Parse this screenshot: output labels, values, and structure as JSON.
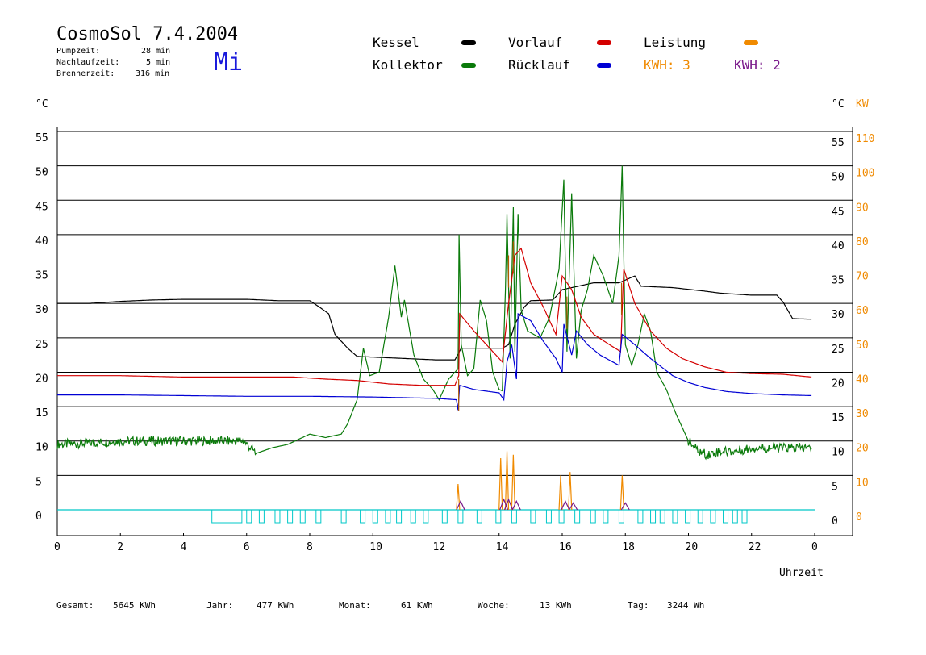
{
  "header": {
    "title": "CosmoSol 7.4.2004",
    "weekday": "Mi",
    "stats": [
      {
        "label": "Pumpzeit:",
        "value": "28 min"
      },
      {
        "label": "Nachlaufzeit:",
        "value": "5 min"
      },
      {
        "label": "Brennerzeit:",
        "value": "316 min"
      }
    ]
  },
  "legend": {
    "kessel": {
      "label": "Kessel",
      "color": "#000000"
    },
    "kollektor": {
      "label": "Kollektor",
      "color": "#0a7a0a"
    },
    "vorlauf": {
      "label": "Vorlauf",
      "color": "#d40000"
    },
    "ruecklauf": {
      "label": "Rücklauf",
      "color": "#0000d4"
    },
    "leistung": {
      "label": "Leistung",
      "color": "#f08a00"
    },
    "kwh1": {
      "label": "KWH: 3",
      "color": "#f08a00"
    },
    "kwh2": {
      "label": "KWH: 2",
      "color": "#7a1a8a"
    }
  },
  "footer": [
    {
      "label": "Gesamt:",
      "value": "5645 KWh"
    },
    {
      "label": "Jahr:",
      "value": "477 KWh"
    },
    {
      "label": "Monat:",
      "value": "61 KWh"
    },
    {
      "label": "Woche:",
      "value": "13 KWh"
    },
    {
      "label": "Tag:",
      "value": "3244 Wh"
    }
  ],
  "chart_data": {
    "type": "line",
    "xlabel": "Uhrzeit",
    "ylabel_left": "°C",
    "ylabel_right": "°C",
    "ylabel_right2": "KW",
    "xlim": [
      0,
      24
    ],
    "ylim": [
      0,
      55
    ],
    "ylim_right2": [
      0,
      110
    ],
    "x_ticks": [
      "0",
      "2",
      "4",
      "6",
      "8",
      "10",
      "12",
      "14",
      "16",
      "18",
      "20",
      "22",
      "0"
    ],
    "y_ticks": [
      0,
      5,
      10,
      15,
      20,
      25,
      30,
      35,
      40,
      45,
      50,
      55
    ],
    "y2_ticks": [
      0,
      10,
      20,
      30,
      40,
      50,
      60,
      70,
      80,
      90,
      100,
      110
    ],
    "grid": true,
    "series": [
      {
        "name": "Kessel",
        "color": "#000000",
        "points": [
          [
            0,
            30
          ],
          [
            1,
            30
          ],
          [
            2,
            30.3
          ],
          [
            3,
            30.5
          ],
          [
            4,
            30.6
          ],
          [
            5,
            30.6
          ],
          [
            6,
            30.6
          ],
          [
            7,
            30.4
          ],
          [
            8,
            30.4
          ],
          [
            8.3,
            29.5
          ],
          [
            8.6,
            28.5
          ],
          [
            8.8,
            25.5
          ],
          [
            9.2,
            23.5
          ],
          [
            9.5,
            22.3
          ],
          [
            11,
            22
          ],
          [
            12,
            21.8
          ],
          [
            12.6,
            21.8
          ],
          [
            12.8,
            23.5
          ],
          [
            14.1,
            23.5
          ],
          [
            14.3,
            24
          ],
          [
            14.5,
            27
          ],
          [
            14.8,
            29.5
          ],
          [
            15,
            30.4
          ],
          [
            15.7,
            30.5
          ],
          [
            16,
            32
          ],
          [
            16.5,
            32.5
          ],
          [
            17,
            33
          ],
          [
            17.8,
            33
          ],
          [
            18.3,
            34
          ],
          [
            18.5,
            32.5
          ],
          [
            19.5,
            32.3
          ],
          [
            20.5,
            31.8
          ],
          [
            21,
            31.5
          ],
          [
            22,
            31.2
          ],
          [
            22.8,
            31.2
          ],
          [
            23,
            30.2
          ],
          [
            23.3,
            27.8
          ],
          [
            23.9,
            27.7
          ]
        ]
      },
      {
        "name": "Kollektor",
        "color": "#0a7a0a",
        "points": [
          [
            0,
            9.5
          ],
          [
            1,
            9.7
          ],
          [
            2,
            10
          ],
          [
            3,
            10
          ],
          [
            4,
            10
          ],
          [
            5,
            10
          ],
          [
            5.9,
            10
          ],
          [
            6.3,
            8.2
          ],
          [
            6.8,
            9
          ],
          [
            7.3,
            9.5
          ],
          [
            8,
            11
          ],
          [
            8.5,
            10.5
          ],
          [
            9,
            11
          ],
          [
            9.2,
            12.5
          ],
          [
            9.5,
            16
          ],
          [
            9.7,
            23.5
          ],
          [
            9.9,
            19.5
          ],
          [
            10.2,
            20
          ],
          [
            10.5,
            28
          ],
          [
            10.7,
            35.5
          ],
          [
            10.9,
            28
          ],
          [
            11,
            30.5
          ],
          [
            11.3,
            22.5
          ],
          [
            11.6,
            19
          ],
          [
            11.9,
            17.5
          ],
          [
            12.1,
            16
          ],
          [
            12.4,
            19
          ],
          [
            12.7,
            20.5
          ],
          [
            12.73,
            40
          ],
          [
            12.8,
            24
          ],
          [
            13,
            19.5
          ],
          [
            13.2,
            20.5
          ],
          [
            13.4,
            30.5
          ],
          [
            13.6,
            27.5
          ],
          [
            13.8,
            20
          ],
          [
            14,
            17.5
          ],
          [
            14.1,
            17.3
          ],
          [
            14.2,
            32
          ],
          [
            14.25,
            43
          ],
          [
            14.35,
            22
          ],
          [
            14.45,
            44
          ],
          [
            14.5,
            23
          ],
          [
            14.6,
            43
          ],
          [
            14.7,
            29
          ],
          [
            14.9,
            26
          ],
          [
            15.3,
            25
          ],
          [
            15.6,
            28
          ],
          [
            15.9,
            35
          ],
          [
            16.05,
            48
          ],
          [
            16.15,
            23
          ],
          [
            16.3,
            46
          ],
          [
            16.45,
            22
          ],
          [
            16.6,
            29
          ],
          [
            16.8,
            32
          ],
          [
            17,
            37
          ],
          [
            17.3,
            34
          ],
          [
            17.6,
            30
          ],
          [
            17.8,
            37
          ],
          [
            17.9,
            50
          ],
          [
            18,
            24
          ],
          [
            18.2,
            21
          ],
          [
            18.4,
            24
          ],
          [
            18.6,
            28.5
          ],
          [
            18.8,
            26
          ],
          [
            19,
            20
          ],
          [
            19.3,
            17.5
          ],
          [
            19.6,
            14
          ],
          [
            20,
            10
          ],
          [
            20.3,
            8.5
          ],
          [
            20.6,
            8
          ],
          [
            21,
            8.5
          ],
          [
            21.5,
            8.5
          ],
          [
            22,
            9
          ],
          [
            23,
            9
          ],
          [
            23.9,
            9
          ]
        ]
      },
      {
        "name": "Vorlauf",
        "color": "#d40000",
        "points": [
          [
            0,
            19.5
          ],
          [
            2,
            19.5
          ],
          [
            4,
            19.3
          ],
          [
            6,
            19.3
          ],
          [
            7.5,
            19.3
          ],
          [
            8.5,
            19
          ],
          [
            9.5,
            18.8
          ],
          [
            10.5,
            18.3
          ],
          [
            11.5,
            18.1
          ],
          [
            12.6,
            18.1
          ],
          [
            12.72,
            19.5
          ],
          [
            12.75,
            28.5
          ],
          [
            13.2,
            26
          ],
          [
            13.6,
            24
          ],
          [
            14.1,
            21.5
          ],
          [
            14.3,
            30
          ],
          [
            14.5,
            37
          ],
          [
            14.7,
            38
          ],
          [
            15,
            33
          ],
          [
            15.4,
            29.5
          ],
          [
            15.8,
            25.5
          ],
          [
            16,
            34
          ],
          [
            16.3,
            32
          ],
          [
            16.6,
            28
          ],
          [
            17,
            25.5
          ],
          [
            17.5,
            24
          ],
          [
            17.85,
            23
          ],
          [
            17.95,
            35
          ],
          [
            18.3,
            30
          ],
          [
            18.8,
            26
          ],
          [
            19.3,
            23.5
          ],
          [
            19.8,
            22
          ],
          [
            20.5,
            20.8
          ],
          [
            21.2,
            20
          ],
          [
            22,
            19.8
          ],
          [
            23,
            19.7
          ],
          [
            23.9,
            19.3
          ]
        ]
      },
      {
        "name": "Rücklauf",
        "color": "#0000d4",
        "points": [
          [
            0,
            16.7
          ],
          [
            2,
            16.7
          ],
          [
            4,
            16.6
          ],
          [
            6,
            16.5
          ],
          [
            8,
            16.5
          ],
          [
            10,
            16.4
          ],
          [
            12,
            16.2
          ],
          [
            12.65,
            16
          ],
          [
            12.7,
            14.5
          ],
          [
            12.75,
            18.1
          ],
          [
            13.2,
            17.5
          ],
          [
            14,
            17
          ],
          [
            14.15,
            16
          ],
          [
            14.25,
            21.5
          ],
          [
            14.4,
            24
          ],
          [
            14.55,
            19
          ],
          [
            14.6,
            28.5
          ],
          [
            15,
            27.5
          ],
          [
            15.4,
            24.5
          ],
          [
            15.8,
            22
          ],
          [
            16,
            20
          ],
          [
            16.05,
            27
          ],
          [
            16.3,
            22.5
          ],
          [
            16.45,
            26
          ],
          [
            16.8,
            24
          ],
          [
            17.2,
            22.5
          ],
          [
            17.8,
            21
          ],
          [
            17.9,
            25.5
          ],
          [
            18.3,
            24
          ],
          [
            18.8,
            22
          ],
          [
            19.5,
            19.5
          ],
          [
            20,
            18.5
          ],
          [
            20.5,
            17.8
          ],
          [
            21.2,
            17.2
          ],
          [
            22,
            16.9
          ],
          [
            23,
            16.7
          ],
          [
            23.9,
            16.6
          ]
        ]
      }
    ],
    "leistung_spikes_kw": [
      [
        12.7,
        7.5
      ],
      [
        14.05,
        15
      ],
      [
        14.25,
        17
      ],
      [
        14.45,
        16
      ],
      [
        15.95,
        10
      ],
      [
        16.25,
        11
      ],
      [
        17.9,
        10
      ]
    ],
    "kwh_bumps_kw": [
      [
        12.78,
        2.5
      ],
      [
        14.15,
        3
      ],
      [
        14.3,
        3
      ],
      [
        14.55,
        2.5
      ],
      [
        16.1,
        2.5
      ],
      [
        16.35,
        2
      ],
      [
        18.0,
        2
      ]
    ],
    "pump_row": {
      "color": "#00c8c8"
    }
  }
}
